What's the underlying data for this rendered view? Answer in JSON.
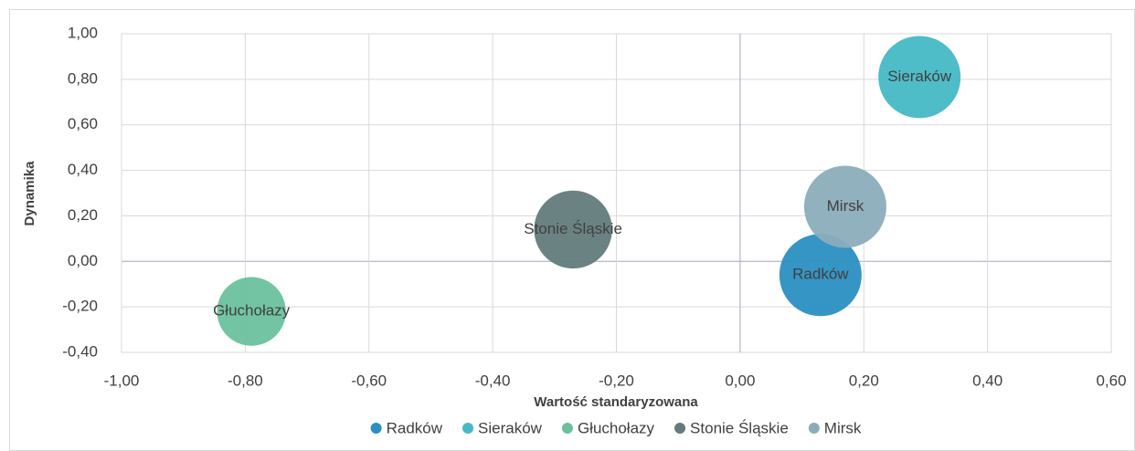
{
  "chart_data": {
    "type": "bubble",
    "xlabel": "Wartość standaryzowana",
    "ylabel": "Dynamika",
    "series": [
      {
        "name": "Radków",
        "color": "#2a8fc1",
        "x": [
          0.13
        ],
        "values": [
          -0.06
        ],
        "sizes": [
          100
        ]
      },
      {
        "name": "Sieraków",
        "color": "#46b9c5",
        "x": [
          0.29
        ],
        "values": [
          0.81
        ],
        "sizes": [
          100
        ]
      },
      {
        "name": "Głuchołazy",
        "color": "#6cc19d",
        "x": [
          -0.79
        ],
        "values": [
          -0.22
        ],
        "sizes": [
          70
        ]
      },
      {
        "name": "Stonie Śląskie",
        "color": "#637b7b",
        "x": [
          -0.27
        ],
        "values": [
          0.14
        ],
        "sizes": [
          90
        ]
      },
      {
        "name": "Mirsk",
        "color": "#8badba",
        "x": [
          0.17
        ],
        "values": [
          0.24
        ],
        "sizes": [
          100
        ]
      }
    ],
    "xlim": [
      -1,
      0.6
    ],
    "xticks": [
      {
        "value": -1,
        "label": "-1,00"
      },
      {
        "value": -0.8,
        "label": "-0,80"
      },
      {
        "value": -0.6,
        "label": "-0,60"
      },
      {
        "value": -0.4,
        "label": "-0,40"
      },
      {
        "value": -0.2,
        "label": "-0,20"
      },
      {
        "value": 0,
        "label": "0,00"
      },
      {
        "value": 0.2,
        "label": "0,20"
      },
      {
        "value": 0.4,
        "label": "0,40"
      },
      {
        "value": 0.6,
        "label": "0,60"
      }
    ],
    "ylim": [
      -0.4,
      1
    ],
    "yticks": [
      {
        "value": -0.4,
        "label": "-0,40"
      },
      {
        "value": -0.2,
        "label": "-0,20"
      },
      {
        "value": 0,
        "label": "0,00"
      },
      {
        "value": 0.2,
        "label": "0,20"
      },
      {
        "value": 0.4,
        "label": "0,40"
      },
      {
        "value": 0.6,
        "label": "0,60"
      },
      {
        "value": 0.8,
        "label": "0,80"
      },
      {
        "value": 1,
        "label": "1,00"
      }
    ],
    "grid": true,
    "legend": "bottom"
  }
}
